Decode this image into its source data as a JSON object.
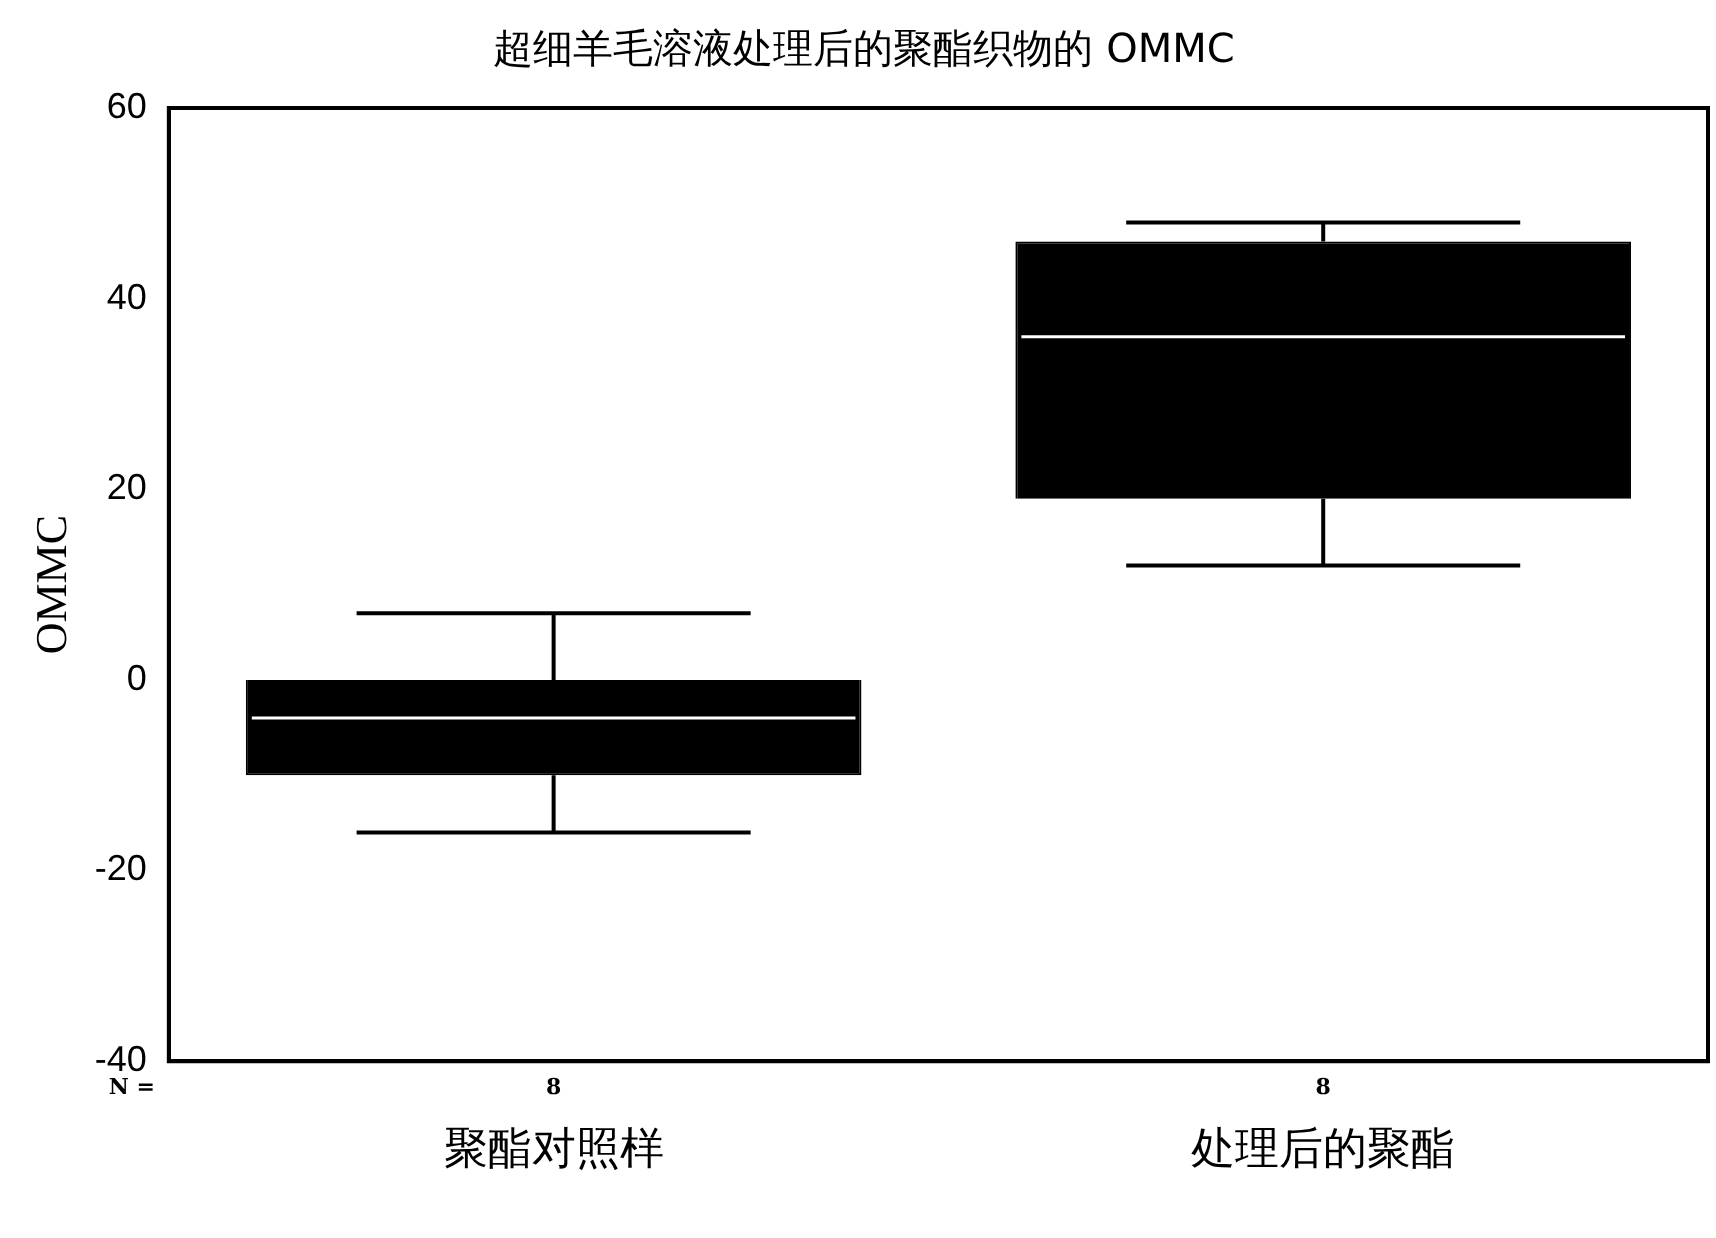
{
  "chart_data": {
    "type": "box",
    "title": "超细羊毛溶液处理后的聚酯织物的 OMMC",
    "ylabel": "OMMC",
    "categories": [
      "聚酯对照样",
      "处理后的聚酯"
    ],
    "series": [
      {
        "color": "#000000",
        "boxes": [
          {
            "low": -16,
            "q1": -10,
            "median": -4,
            "q3": 0,
            "high": 7
          },
          {
            "low": 12,
            "q1": 19,
            "median": 36,
            "q3": 46,
            "high": 48
          }
        ]
      }
    ],
    "ylim": [
      -40,
      60
    ],
    "yticks": [
      -40,
      -20,
      0,
      20,
      40,
      60
    ],
    "grid": false,
    "legend": false,
    "annotations": [
      "N =",
      "8",
      "8"
    ]
  }
}
